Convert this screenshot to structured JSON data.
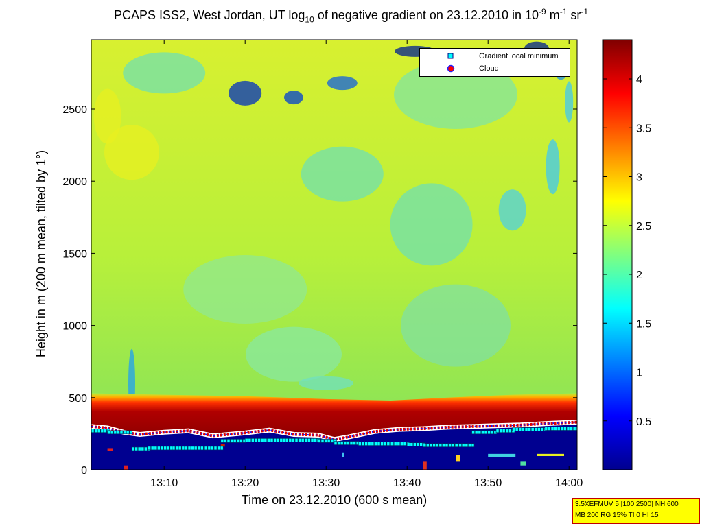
{
  "title": {
    "main": "PCAPS ISS2, West Jordan, UT log",
    "sub": "10",
    "mid": " of negative gradient on 23.12.2010 in 10",
    "exp1": "-9",
    "unit1": " m",
    "exp2": "-1",
    "unit2": " sr",
    "exp3": "-1"
  },
  "infobox": {
    "line1": "3.5XEFMUV 5 [100 2500] NH 600",
    "line2": "MB 200 RG 15% TI 0 HI 15"
  },
  "chart_data": {
    "type": "heatmap",
    "xlabel": "Time on 23.12.2010 (600 s mean)",
    "ylabel": "Height in m (200 m mean, tilted by 1°)",
    "xlim_minutes": [
      781,
      841
    ],
    "ylim": [
      0,
      2980
    ],
    "xticks": [
      {
        "value": 790,
        "label": "13:10"
      },
      {
        "value": 800,
        "label": "13:20"
      },
      {
        "value": 810,
        "label": "13:30"
      },
      {
        "value": 820,
        "label": "13:40"
      },
      {
        "value": 830,
        "label": "13:50"
      },
      {
        "value": 840,
        "label": "14:00"
      }
    ],
    "yticks": [
      0,
      500,
      1000,
      1500,
      2000,
      2500
    ],
    "colorbar": {
      "range": [
        0,
        4.4
      ],
      "ticks": [
        0.5,
        1,
        1.5,
        2,
        2.5,
        3,
        3.5,
        4
      ],
      "colormap": "jet"
    },
    "legend": [
      {
        "name": "Gradient local minimum",
        "marker": "square",
        "color": "#00ffff"
      },
      {
        "name": "Cloud",
        "marker": "circle",
        "color": "#ff0000"
      }
    ],
    "legend_position": "top-right",
    "field_description_levels": {
      "background_above_550m": 2.4,
      "layer_300_to_530m": 4.3,
      "below_300m": 0.1
    },
    "cloud_line": {
      "x": [
        781,
        783,
        785,
        787,
        790,
        793,
        796,
        800,
        803,
        806,
        809,
        811,
        813,
        816,
        819,
        822,
        825,
        828,
        831,
        834,
        837,
        841
      ],
      "y": [
        300,
        290,
        260,
        245,
        260,
        270,
        235,
        255,
        275,
        245,
        240,
        210,
        230,
        265,
        280,
        285,
        295,
        300,
        305,
        310,
        320,
        330
      ]
    },
    "gradient_minimum": {
      "x": [
        781,
        783,
        786,
        788,
        791,
        795,
        797,
        800,
        805,
        809,
        811,
        814,
        818,
        820,
        822,
        826,
        828,
        831,
        833,
        837,
        841
      ],
      "y": [
        270,
        260,
        145,
        150,
        150,
        150,
        200,
        205,
        205,
        200,
        185,
        180,
        180,
        175,
        170,
        170,
        260,
        270,
        280,
        285,
        285
      ]
    }
  }
}
